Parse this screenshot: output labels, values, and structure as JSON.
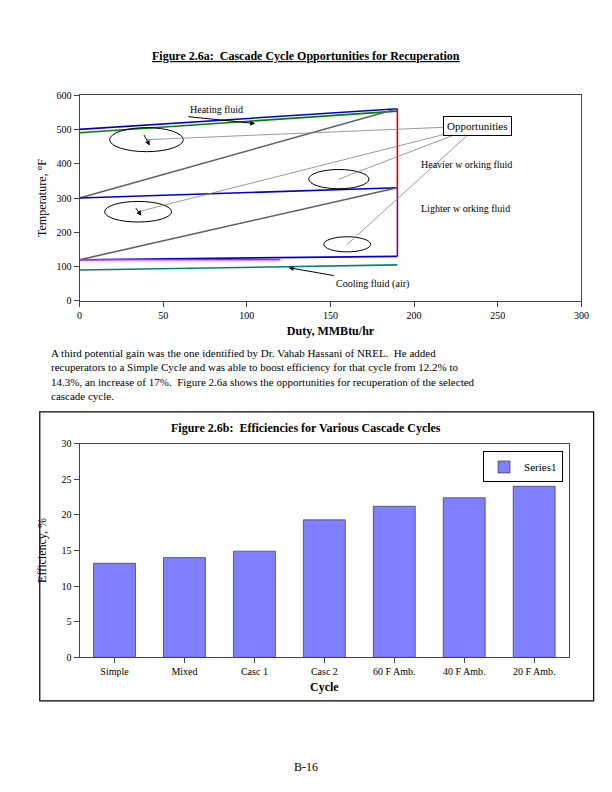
{
  "chart_data": [
    {
      "type": "line",
      "title": "Figure 2.6a:  Cascade Cycle Opportunities for Recuperation",
      "xlabel": "Duty, MMBtu/hr",
      "ylabel": "Temperature, °F",
      "xlim": [
        0,
        300
      ],
      "ylim": [
        0,
        600
      ],
      "xticks": [
        0,
        50,
        100,
        150,
        200,
        250,
        300
      ],
      "yticks": [
        0,
        100,
        200,
        300,
        400,
        500,
        600
      ],
      "grid": false,
      "series": [
        {
          "color": "#0000cc",
          "x": [
            0,
            190
          ],
          "values": [
            500,
            560
          ]
        },
        {
          "color": "#008000",
          "x": [
            0,
            190
          ],
          "values": [
            490,
            553
          ]
        },
        {
          "color": "#606060",
          "x": [
            0,
            190
          ],
          "values": [
            300,
            560
          ]
        },
        {
          "color": "#0000cc",
          "x": [
            0,
            190
          ],
          "values": [
            300,
            330
          ]
        },
        {
          "color": "#cc0000",
          "x": [
            190,
            190
          ],
          "values": [
            330,
            560
          ]
        },
        {
          "color": "#606060",
          "x": [
            0,
            190
          ],
          "values": [
            120,
            330
          ]
        },
        {
          "color": "#0000cc",
          "x": [
            0,
            190
          ],
          "values": [
            120,
            130
          ]
        },
        {
          "color": "#800080",
          "x": [
            190,
            190
          ],
          "values": [
            130,
            330
          ]
        },
        {
          "color": "#ff00ff",
          "x": [
            0,
            120
          ],
          "values": [
            120,
            120
          ]
        },
        {
          "color": "#008080",
          "x": [
            0,
            190
          ],
          "values": [
            90,
            105
          ]
        }
      ],
      "ellipses": [
        {
          "cx": 40,
          "cy": 470,
          "rx": 22,
          "ry": 35
        },
        {
          "cx": 35,
          "cy": 260,
          "rx": 20,
          "ry": 30
        },
        {
          "cx": 155,
          "cy": 355,
          "rx": 18,
          "ry": 28
        },
        {
          "cx": 160,
          "cy": 165,
          "rx": 14,
          "ry": 22
        }
      ],
      "arrows": [
        {
          "x": 42,
          "y": 453,
          "from_x": 38,
          "from_y": 488
        },
        {
          "x": 37,
          "y": 248,
          "from_x": 33,
          "from_y": 275
        }
      ],
      "callout": {
        "text": "Opportunities",
        "x": 238,
        "y": 510
      },
      "annotations": [
        {
          "text": "Heating fluid",
          "x": 65,
          "y": 537,
          "point_x": 105,
          "point_y": 517
        },
        {
          "text": "Heavier w orking fluid",
          "x": 203,
          "y": 398
        },
        {
          "text": "Lighter w orking fluid",
          "x": 203,
          "y": 268
        },
        {
          "text": "Cooling fluid (air)",
          "x": 152,
          "y": 74,
          "point_x": 125,
          "point_y": 97
        }
      ]
    },
    {
      "type": "bar",
      "title": "Figure 2.6b:  Efficiencies for Various Cascade Cycles",
      "xlabel": "Cycle",
      "ylabel": "Efficiency, %",
      "categories": [
        "Simple",
        "Mixed",
        "Casc 1",
        "Casc 2",
        "60 F Amb.",
        "40 F Amb.",
        "20 F Amb."
      ],
      "series": [
        {
          "name": "Series1",
          "color": "#8080ff",
          "values": [
            13.2,
            14.0,
            14.9,
            19.3,
            21.2,
            22.4,
            24.0
          ]
        }
      ],
      "ylim": [
        0,
        30
      ],
      "yticks": [
        0,
        5,
        10,
        15,
        20,
        25,
        30
      ],
      "legend": "upper right",
      "grid": false
    }
  ],
  "body_text": [
    "A third potential gain was the one identified by Dr. Vahab Hassani of NREL.  He added",
    "recuperators to a Simple Cycle and was able to boost efficiency for that cycle from 12.2% to",
    "14.3%, an increase of 17%.  Figure 2.6a shows the opportunities for recuperation of the selected",
    "cascade cycle."
  ],
  "footer": "B-16"
}
